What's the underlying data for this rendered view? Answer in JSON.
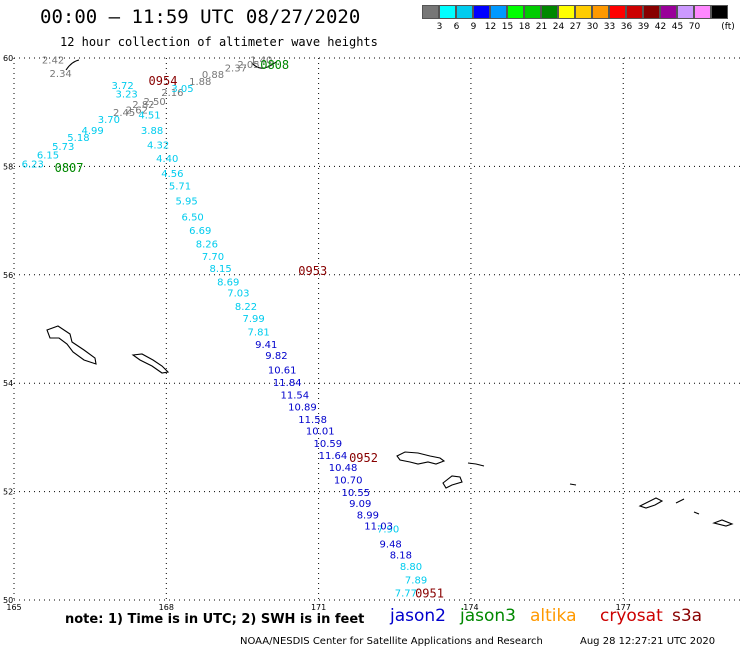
{
  "header": {
    "title": "00:00 – 11:59 UTC 08/27/2020",
    "subtitle": "12 hour collection of altimeter wave heights"
  },
  "scale": {
    "unit": "(ft)",
    "bins": [
      {
        "label": "",
        "color": "#777777"
      },
      {
        "label": "3",
        "color": "#00ffff"
      },
      {
        "label": "6",
        "color": "#00ccee"
      },
      {
        "label": "9",
        "color": "#0000ff"
      },
      {
        "label": "12",
        "color": "#0099ff"
      },
      {
        "label": "15",
        "color": "#00ff00"
      },
      {
        "label": "18",
        "color": "#00cc00"
      },
      {
        "label": "21",
        "color": "#008800"
      },
      {
        "label": "24",
        "color": "#ffff00"
      },
      {
        "label": "27",
        "color": "#ffcc00"
      },
      {
        "label": "30",
        "color": "#ff9900"
      },
      {
        "label": "33",
        "color": "#ff0000"
      },
      {
        "label": "36",
        "color": "#cc0000"
      },
      {
        "label": "39",
        "color": "#880000"
      },
      {
        "label": "42",
        "color": "#990099"
      },
      {
        "label": "45",
        "color": "#cc99ff"
      },
      {
        "label": "70",
        "color": "#ff88ff"
      },
      {
        "label": "",
        "color": "#000000"
      }
    ]
  },
  "map": {
    "lon_labels": [
      "165",
      "168",
      "171",
      "174",
      "177"
    ],
    "lat_labels": [
      "60",
      "58",
      "56",
      "54",
      "52",
      "50"
    ],
    "lon_range": [
      165,
      179.3
    ],
    "lat_range": [
      50,
      60
    ]
  },
  "times": [
    {
      "text": "0954",
      "color": "#880000",
      "lon": 167.65,
      "lat": 59.5
    },
    {
      "text": "0808",
      "color": "#008800",
      "lon": 169.85,
      "lat": 59.8
    },
    {
      "text": "0807",
      "color": "#008800",
      "lon": 165.8,
      "lat": 57.9
    },
    {
      "text": "0953",
      "color": "#880000",
      "lon": 170.6,
      "lat": 56.0
    },
    {
      "text": "0952",
      "color": "#880000",
      "lon": 171.6,
      "lat": 52.55
    },
    {
      "text": "0951",
      "color": "#880000",
      "lon": 172.9,
      "lat": 50.05
    }
  ],
  "tracks": [
    {
      "name": "gray-track",
      "points": [
        {
          "v": "2.42",
          "c": "#777777",
          "lon": 165.55,
          "lat": 59.9
        },
        {
          "v": "2.34",
          "c": "#777777",
          "lon": 165.7,
          "lat": 59.65
        },
        {
          "v": "1.40",
          "c": "#777777",
          "lon": 169.65,
          "lat": 59.9
        },
        {
          "v": "2.05",
          "c": "#777777",
          "lon": 169.4,
          "lat": 59.82
        },
        {
          "v": "2.37",
          "c": "#777777",
          "lon": 169.15,
          "lat": 59.75
        },
        {
          "v": "0.88",
          "c": "#777777",
          "lon": 168.7,
          "lat": 59.63
        },
        {
          "v": "1.88",
          "c": "#777777",
          "lon": 168.45,
          "lat": 59.5
        },
        {
          "v": "2.16",
          "c": "#777777",
          "lon": 167.9,
          "lat": 59.3
        },
        {
          "v": "2.50",
          "c": "#777777",
          "lon": 167.55,
          "lat": 59.13
        },
        {
          "v": "2.82",
          "c": "#777777",
          "lon": 167.33,
          "lat": 59.08
        },
        {
          "v": "2.62",
          "c": "#777777",
          "lon": 167.2,
          "lat": 58.98
        },
        {
          "v": "2.45",
          "c": "#777777",
          "lon": 166.95,
          "lat": 58.93
        }
      ]
    },
    {
      "name": "cyan-track",
      "points": [
        {
          "v": "3.72",
          "c": "#00ccee",
          "lon": 166.92,
          "lat": 59.43
        },
        {
          "v": "3.23",
          "c": "#00ccee",
          "lon": 167.0,
          "lat": 59.27
        },
        {
          "v": "3.05",
          "c": "#00ccee",
          "lon": 168.1,
          "lat": 59.37
        },
        {
          "v": "4.51",
          "c": "#00ccee",
          "lon": 167.45,
          "lat": 58.88
        },
        {
          "v": "3.70",
          "c": "#00ccee",
          "lon": 166.65,
          "lat": 58.8
        },
        {
          "v": "3.88",
          "c": "#00ccee",
          "lon": 167.5,
          "lat": 58.6
        },
        {
          "v": "4.99",
          "c": "#00ccee",
          "lon": 166.33,
          "lat": 58.6
        },
        {
          "v": "5.18",
          "c": "#00ccee",
          "lon": 166.05,
          "lat": 58.47
        },
        {
          "v": "4.32",
          "c": "#00ccee",
          "lon": 167.62,
          "lat": 58.33
        },
        {
          "v": "5.73",
          "c": "#00ccee",
          "lon": 165.75,
          "lat": 58.3
        },
        {
          "v": "6.15",
          "c": "#00ccee",
          "lon": 165.45,
          "lat": 58.15
        },
        {
          "v": "4.40",
          "c": "#00ccee",
          "lon": 167.8,
          "lat": 58.08
        },
        {
          "v": "6.23",
          "c": "#00ccee",
          "lon": 165.15,
          "lat": 57.98
        },
        {
          "v": "4.56",
          "c": "#00ccee",
          "lon": 167.9,
          "lat": 57.8
        },
        {
          "v": "5.71",
          "c": "#00ccee",
          "lon": 168.05,
          "lat": 57.57
        },
        {
          "v": "5.95",
          "c": "#00ccee",
          "lon": 168.18,
          "lat": 57.3
        },
        {
          "v": "6.50",
          "c": "#00ccee",
          "lon": 168.3,
          "lat": 57.0
        },
        {
          "v": "6.69",
          "c": "#00ccee",
          "lon": 168.45,
          "lat": 56.75
        },
        {
          "v": "8.26",
          "c": "#00ccee",
          "lon": 168.58,
          "lat": 56.5
        },
        {
          "v": "7.70",
          "c": "#00ccee",
          "lon": 168.7,
          "lat": 56.27
        },
        {
          "v": "8.15",
          "c": "#00ccee",
          "lon": 168.85,
          "lat": 56.05
        },
        {
          "v": "8.69",
          "c": "#00ccee",
          "lon": 169.0,
          "lat": 55.8
        },
        {
          "v": "7.03",
          "c": "#00ccee",
          "lon": 169.2,
          "lat": 55.6
        },
        {
          "v": "8.22",
          "c": "#00ccee",
          "lon": 169.35,
          "lat": 55.35
        },
        {
          "v": "7.99",
          "c": "#00ccee",
          "lon": 169.5,
          "lat": 55.13
        },
        {
          "v": "7.81",
          "c": "#00ccee",
          "lon": 169.6,
          "lat": 54.88
        },
        {
          "v": "7.90",
          "c": "#00ccee",
          "lon": 172.15,
          "lat": 51.25
        },
        {
          "v": "8.80",
          "c": "#00ccee",
          "lon": 172.6,
          "lat": 50.55
        },
        {
          "v": "7.89",
          "c": "#00ccee",
          "lon": 172.7,
          "lat": 50.3
        },
        {
          "v": "7.77",
          "c": "#00ccee",
          "lon": 172.5,
          "lat": 50.06
        }
      ]
    },
    {
      "name": "blue-track",
      "points": [
        {
          "v": "9.41",
          "c": "#0000cc",
          "lon": 169.75,
          "lat": 54.65
        },
        {
          "v": "9.82",
          "c": "#0000cc",
          "lon": 169.95,
          "lat": 54.45
        },
        {
          "v": "10.61",
          "c": "#0000cc",
          "lon": 170.0,
          "lat": 54.18
        },
        {
          "v": "11.84",
          "c": "#0000cc",
          "lon": 170.1,
          "lat": 53.95
        },
        {
          "v": "11.54",
          "c": "#0000cc",
          "lon": 170.25,
          "lat": 53.72
        },
        {
          "v": "10.89",
          "c": "#0000cc",
          "lon": 170.4,
          "lat": 53.5
        },
        {
          "v": "11.58",
          "c": "#0000cc",
          "lon": 170.6,
          "lat": 53.27
        },
        {
          "v": "10.01",
          "c": "#0000cc",
          "lon": 170.75,
          "lat": 53.05
        },
        {
          "v": "10.59",
          "c": "#0000cc",
          "lon": 170.9,
          "lat": 52.82
        },
        {
          "v": "11.64",
          "c": "#0000cc",
          "lon": 171.0,
          "lat": 52.6
        },
        {
          "v": "10.48",
          "c": "#0000cc",
          "lon": 171.2,
          "lat": 52.38
        },
        {
          "v": "10.70",
          "c": "#0000cc",
          "lon": 171.3,
          "lat": 52.15
        },
        {
          "v": "10.55",
          "c": "#0000cc",
          "lon": 171.45,
          "lat": 51.92
        },
        {
          "v": "9.09",
          "c": "#0000cc",
          "lon": 171.6,
          "lat": 51.72
        },
        {
          "v": "8.99",
          "c": "#0000cc",
          "lon": 171.75,
          "lat": 51.5
        },
        {
          "v": "11.03",
          "c": "#0000cc",
          "lon": 171.9,
          "lat": 51.3
        },
        {
          "v": "9.48",
          "c": "#0000cc",
          "lon": 172.2,
          "lat": 50.97
        },
        {
          "v": "8.18",
          "c": "#0000cc",
          "lon": 172.4,
          "lat": 50.77
        }
      ]
    }
  ],
  "footer": {
    "note": "note:  1) Time is in UTC;  2) SWH is in feet",
    "satellites": [
      {
        "name": "jason2",
        "color": "#0000cc"
      },
      {
        "name": "jason3",
        "color": "#008800"
      },
      {
        "name": "altika",
        "color": "#ff9900"
      },
      {
        "name": "cryosat",
        "color": "#cc0000"
      },
      {
        "name": "s3a",
        "color": "#880000"
      }
    ],
    "agency": "NOAA/NESDIS Center for Satellite Applications and Research",
    "generated": "Aug 28 12:27:21 UTC 2020"
  }
}
